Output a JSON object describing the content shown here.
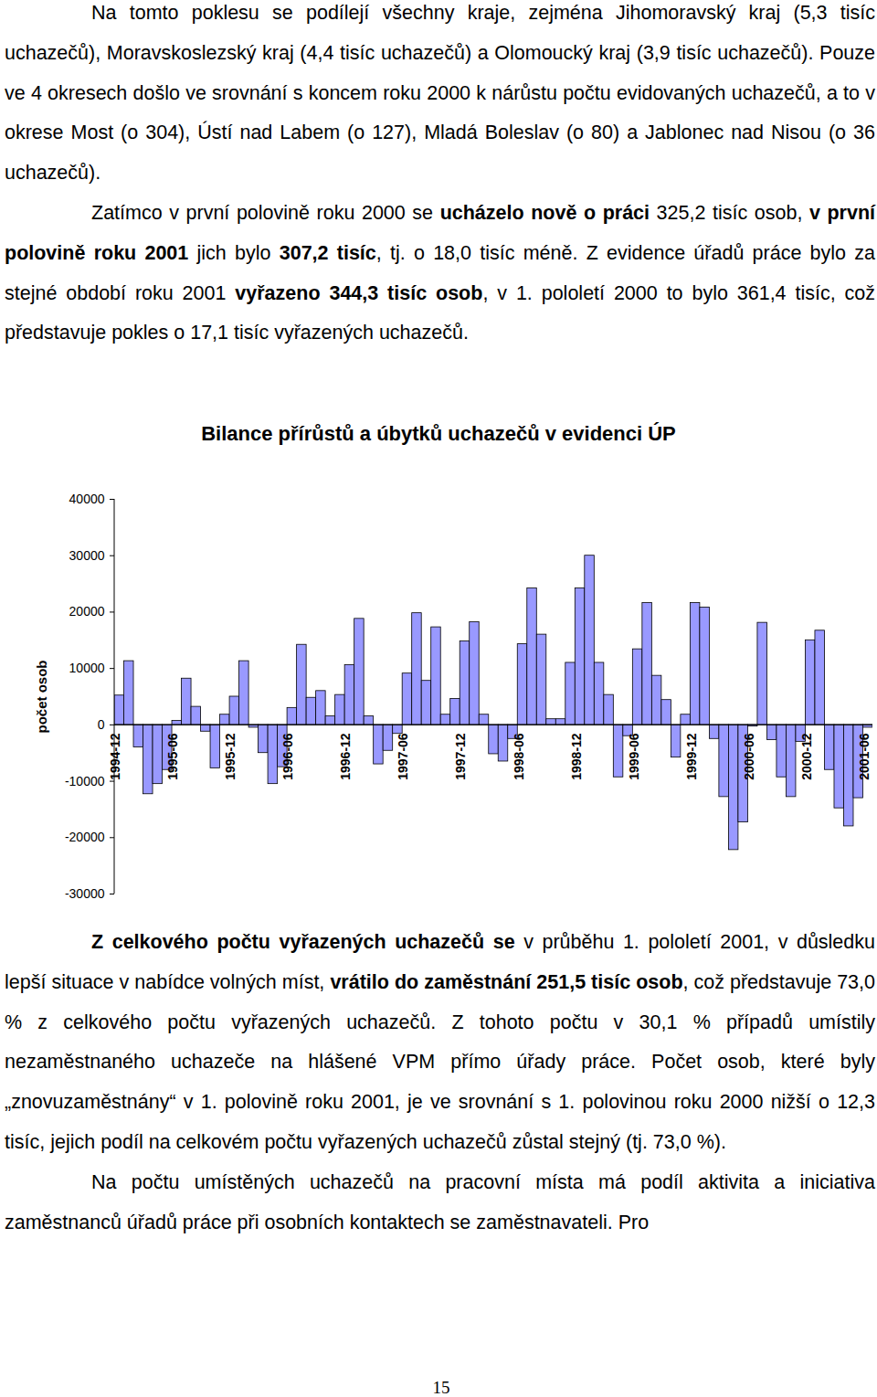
{
  "paragraphs_before": [
    [
      {
        "text": "Na tomto poklesu se podílejí všechny kraje, zejména Jihomoravský kraj (5,3 tisíc uchazečů), Moravskoslezský kraj (4,4 tisíc uchazečů) a Olomoucký kraj (3,9 tisíc uchazečů). Pouze ve 4 okresech došlo ve srovnání s koncem roku 2000 k nárůstu počtu evidovaných uchazečů, a to v okrese Most (o 304), Ústí nad Labem (o 127), Mladá Boleslav (o 80) a Jablonec nad Nisou (o 36 uchazečů).",
        "bold": false
      }
    ],
    [
      {
        "text": "Zatímco v první polovině roku 2000 se ",
        "bold": false
      },
      {
        "text": "ucházelo nově o práci",
        "bold": true
      },
      {
        "text": " 325,2 tisíc osob, ",
        "bold": false
      },
      {
        "text": "v první polovině roku 2001",
        "bold": true
      },
      {
        "text": " jich bylo ",
        "bold": false
      },
      {
        "text": "307,2 tisíc",
        "bold": true
      },
      {
        "text": ", tj. o 18,0 tisíc méně. Z evidence úřadů práce bylo za stejné období roku 2001 ",
        "bold": false
      },
      {
        "text": "vyřazeno 344,3 tisíc osob",
        "bold": true
      },
      {
        "text": ", v 1. pololetí 2000 to bylo 361,4 tisíc, což představuje pokles o 17,1 tisíc vyřazených uchazečů.",
        "bold": false
      }
    ]
  ],
  "chart_data": {
    "type": "bar",
    "title": "Bilance přírůstů a úbytků uchazečů v evidenci ÚP",
    "y_label": "počet osob",
    "categories": [
      "1994-12",
      null,
      null,
      null,
      null,
      null,
      "1995-06",
      null,
      null,
      null,
      null,
      null,
      "1995-12",
      null,
      null,
      null,
      null,
      null,
      "1996-06",
      null,
      null,
      null,
      null,
      null,
      "1996-12",
      null,
      null,
      null,
      null,
      null,
      "1997-06",
      null,
      null,
      null,
      null,
      null,
      "1997-12",
      null,
      null,
      null,
      null,
      null,
      "1998-06",
      null,
      null,
      null,
      null,
      null,
      "1998-12",
      null,
      null,
      null,
      null,
      null,
      "1999-06",
      null,
      null,
      null,
      null,
      null,
      "1999-12",
      null,
      null,
      null,
      null,
      null,
      "2000-06",
      null,
      null,
      null,
      null,
      null,
      "2000-12",
      null,
      null,
      null,
      null,
      null,
      "2001-06"
    ],
    "values": [
      5200,
      11300,
      -4000,
      -12300,
      -10500,
      -8000,
      700,
      8200,
      3200,
      -1200,
      -7700,
      1800,
      5000,
      11300,
      -500,
      -5000,
      -10500,
      -7500,
      3000,
      14200,
      4800,
      6000,
      1500,
      5300,
      10600,
      18800,
      1500,
      -7000,
      -4600,
      -1600,
      9100,
      19800,
      7800,
      17300,
      1800,
      4600,
      14800,
      18200,
      1800,
      -5200,
      -6500,
      -2500,
      14300,
      24200,
      16000,
      1000,
      1000,
      11000,
      24200,
      30000,
      11000,
      5300,
      -9300,
      -2000,
      13400,
      21600,
      8700,
      4400,
      -5800,
      1800,
      21600,
      20800,
      -2500,
      -12800,
      -22200,
      -17300,
      -300,
      18100,
      -2700,
      -9300,
      -12800,
      -3000,
      15000,
      16700,
      -8000,
      -14800,
      -18000,
      -13000,
      -500
    ],
    "color": "#9999ff",
    "ylim": [
      -30000,
      40000
    ],
    "yticks": [
      -30000,
      -20000,
      -10000,
      0,
      10000,
      20000,
      30000,
      40000
    ],
    "grid": false
  },
  "paragraphs_after": [
    [
      {
        "text": "Z celkového počtu vyřazených uchazečů se",
        "bold": true
      },
      {
        "text": " v průběhu 1. pololetí 2001, v důsledku lepší situace v nabídce volných míst, ",
        "bold": false
      },
      {
        "text": "vrátilo do zaměstnání 251,5 tisíc osob",
        "bold": true
      },
      {
        "text": ", což představuje 73,0 % z celkového počtu vyřazených uchazečů. Z tohoto počtu v 30,1 % případů umístily nezaměstnaného uchazeče na hlášené VPM přímo úřady práce. Počet osob, které byly „znovuzaměstnány“ v 1. polovině roku 2001, je ve srovnání s 1. polovinou roku 2000 nižší o 12,3 tisíc, jejich podíl na celkovém počtu vyřazených uchazečů zůstal stejný (tj. 73,0 %).",
        "bold": false
      }
    ],
    [
      {
        "text": "Na počtu umístěných uchazečů na pracovní místa má podíl aktivita a iniciativa zaměstnanců úřadů práce při osobních kontaktech se zaměstnavateli. Pro",
        "bold": false
      }
    ]
  ],
  "page_number": "15"
}
